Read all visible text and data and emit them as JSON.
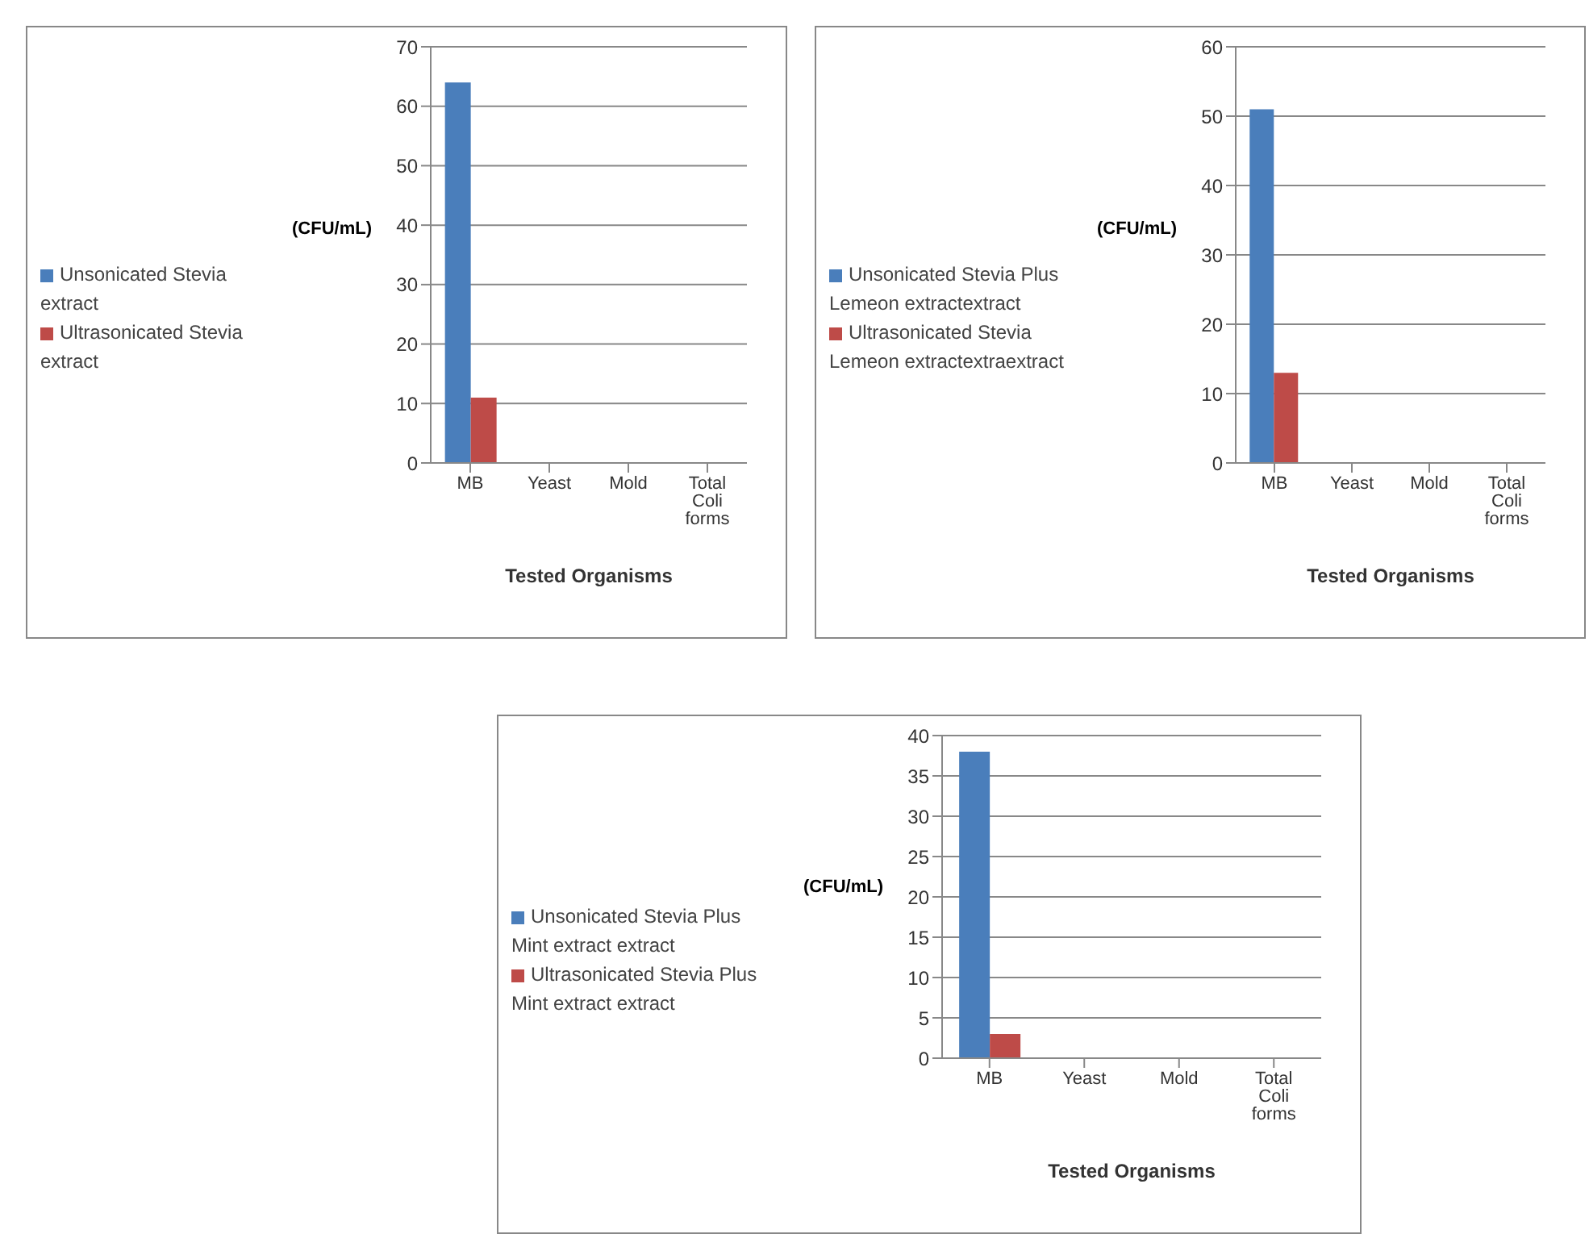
{
  "chart_data": [
    {
      "type": "bar",
      "categories": [
        "MB",
        "Yeast",
        "Mold",
        "Total Coli forms"
      ],
      "xlabel": "Tested Organisms",
      "ylabel": "(CFU/mL)",
      "ylim": [
        0,
        70
      ],
      "yticks": [
        0,
        10,
        20,
        30,
        40,
        50,
        60,
        70
      ],
      "grid": "y",
      "legend": "left",
      "series": [
        {
          "name": "Unsonicated Stevia extract",
          "color": "#4a7ebb",
          "values": [
            64,
            0,
            0,
            0
          ]
        },
        {
          "name": "Ultrasonicated Stevia extract",
          "color": "#be4b48",
          "values": [
            11,
            0,
            0,
            0
          ]
        }
      ]
    },
    {
      "type": "bar",
      "categories": [
        "MB",
        "Yeast",
        "Mold",
        "Total Coli forms"
      ],
      "xlabel": "Tested Organisms",
      "ylabel": "(CFU/mL)",
      "ylim": [
        0,
        60
      ],
      "yticks": [
        0,
        10,
        20,
        30,
        40,
        50,
        60
      ],
      "grid": "y",
      "legend": "left",
      "series": [
        {
          "name": "Unsonicated Stevia  Plus Lemeon extractextract",
          "color": "#4a7ebb",
          "values": [
            51,
            0,
            0,
            0
          ]
        },
        {
          "name": "Ultrasonicated Stevia Lemeon extractextraextract",
          "color": "#be4b48",
          "values": [
            13,
            0,
            0,
            0
          ]
        }
      ]
    },
    {
      "type": "bar",
      "categories": [
        "MB",
        "Yeast",
        "Mold",
        "Total Coli forms"
      ],
      "xlabel": "Tested Organisms",
      "ylabel": "(CFU/mL)",
      "ylim": [
        0,
        40
      ],
      "yticks": [
        0,
        5,
        10,
        15,
        20,
        25,
        30,
        35,
        40
      ],
      "grid": "y",
      "legend": "left",
      "series": [
        {
          "name": "Unsonicated Stevia  Plus Mint extract extract",
          "color": "#4a7ebb",
          "values": [
            38,
            0,
            0,
            0
          ]
        },
        {
          "name": "Ultrasonicated Stevia Plus Mint extract extract",
          "color": "#be4b48",
          "values": [
            3,
            0,
            0,
            0
          ]
        }
      ]
    }
  ]
}
